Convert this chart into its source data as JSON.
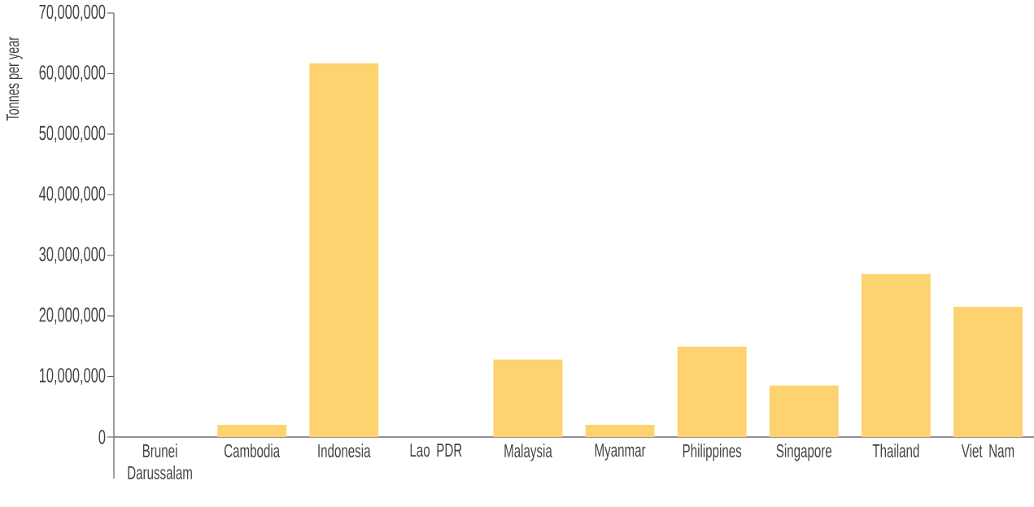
{
  "chart_data": {
    "type": "bar",
    "ylabel": "Tonnes per year",
    "categories": [
      "Brunei Darussalam",
      "Cambodia",
      "Indonesia",
      "Lao PDR",
      "Malaysia",
      "Myanmar",
      "Philippines",
      "Singapore",
      "Thailand",
      "Viet Nam"
    ],
    "values": [
      0,
      2000000,
      61700000,
      0,
      12800000,
      2000000,
      14900000,
      8500000,
      26900000,
      21500000
    ],
    "color": "#fdd36f",
    "ylim": [
      0,
      70000000
    ],
    "yticks": [
      0,
      {
        "value": 10000000,
        "label": "10,000,000"
      },
      {
        "value": 20000000,
        "label": "20,000,000"
      },
      {
        "value": 30000000,
        "label": "30,000,000"
      },
      {
        "value": 40000000,
        "label": "40,000,000"
      },
      {
        "value": 50000000,
        "label": "50,000,000"
      },
      {
        "value": 60000000,
        "label": "60,000,000"
      },
      {
        "value": 70000000,
        "label": "70,000,000"
      }
    ]
  }
}
